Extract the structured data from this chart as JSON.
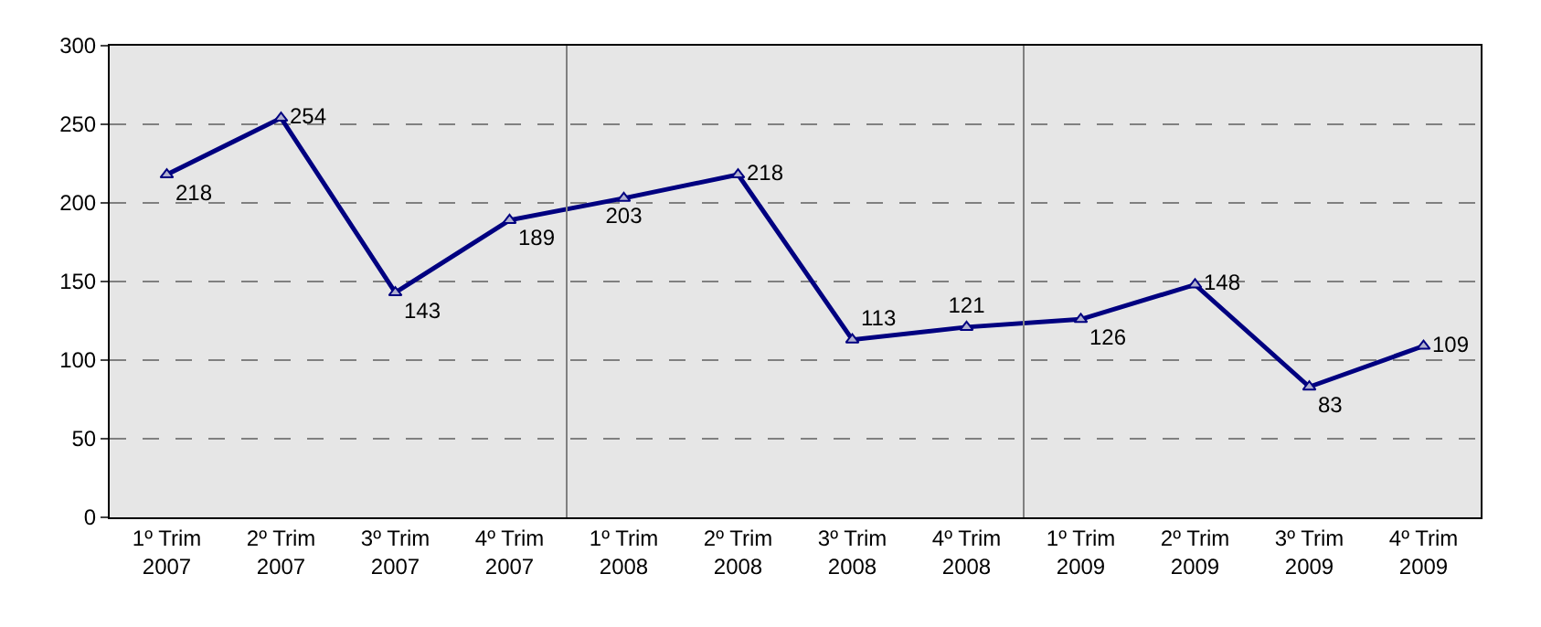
{
  "chart_data": {
    "type": "line",
    "categories": [
      "1º Trim\n2007",
      "2º Trim\n2007",
      "3º Trim\n2007",
      "4º Trim\n2007",
      "1º Trim\n2008",
      "2º Trim\n2008",
      "3º Trim\n2008",
      "4º Trim\n2008",
      "1º Trim\n2009",
      "2º Trim\n2009",
      "3º Trim\n2009",
      "4º Trim\n2009"
    ],
    "series": [
      {
        "color": "#000080",
        "values": [
          218,
          254,
          143,
          189,
          203,
          218,
          113,
          121,
          126,
          148,
          83,
          109
        ]
      }
    ],
    "ylim": [
      0,
      300
    ],
    "yticks": [
      0,
      50,
      100,
      150,
      200,
      250,
      300
    ],
    "grid": "y",
    "marker": "triangle",
    "line_style": "solid",
    "data_labels": true
  }
}
